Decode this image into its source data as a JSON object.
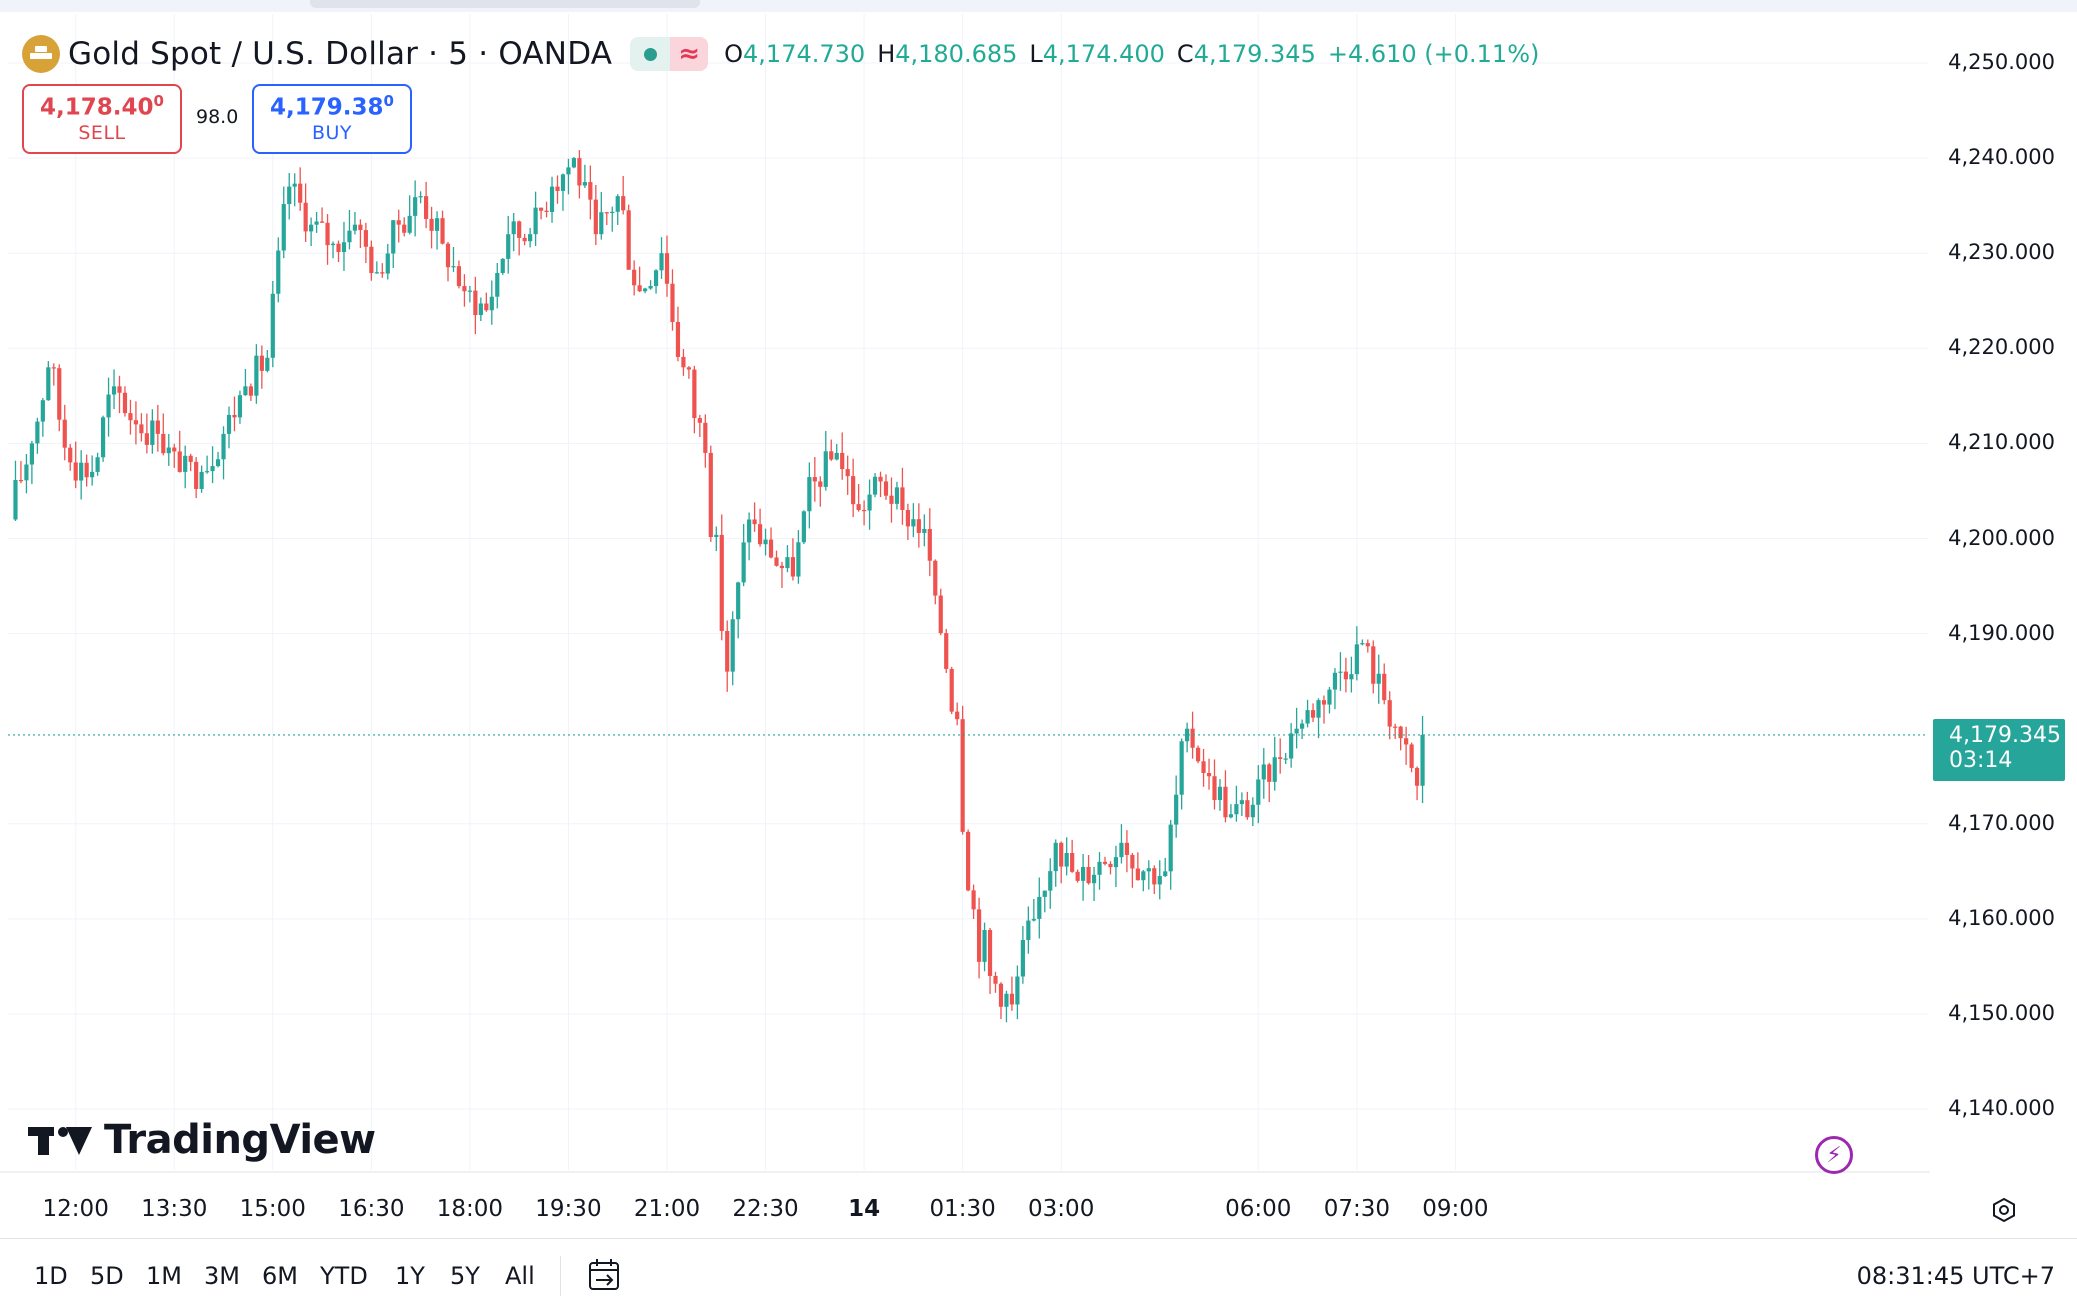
{
  "header": {
    "symbol_title": "Gold Spot / U.S. Dollar · 5 · OANDA",
    "status_icon": "market-open-dot",
    "wave_icon": "≈",
    "ohlc": {
      "o_key": "O",
      "o_val": "4,174.730",
      "h_key": "H",
      "h_val": "4,180.685",
      "l_key": "L",
      "l_val": "4,174.400",
      "c_key": "C",
      "c_val": "4,179.345",
      "change": "+4.610 (+0.11%)"
    }
  },
  "trade": {
    "sell_price": "4,178.40",
    "sell_price_sup": "0",
    "sell_label": "SELL",
    "spread": "98.0",
    "buy_price": "4,179.38",
    "buy_price_sup": "0",
    "buy_label": "BUY"
  },
  "price_axis": [
    "4,250.000",
    "4,240.000",
    "4,230.000",
    "4,220.000",
    "4,210.000",
    "4,200.000",
    "4,190.000",
    "4,170.000",
    "4,160.000",
    "4,150.000",
    "4,140.000"
  ],
  "last_price": {
    "price": "4,179.345",
    "countdown": "03:14"
  },
  "time_axis": [
    "12:00",
    "13:30",
    "15:00",
    "16:30",
    "18:00",
    "19:30",
    "21:00",
    "22:30",
    "14",
    "01:30",
    "03:00",
    "06:00",
    "07:30",
    "09:00"
  ],
  "branding": {
    "logo_text": "TradingView"
  },
  "toolbar": {
    "ranges": [
      "1D",
      "5D",
      "1M",
      "3M",
      "6M",
      "YTD",
      "1Y",
      "5Y",
      "All"
    ],
    "clock": "08:31:45 UTC+7"
  },
  "colors": {
    "up": "#26a69a",
    "down": "#ef5350",
    "grid": "#f0f3fa"
  },
  "chart_data": {
    "type": "candlestick",
    "title": "Gold Spot / U.S. Dollar · 5 · OANDA",
    "interval": "5",
    "ylim": [
      4133,
      4256
    ],
    "grid": true,
    "x_ticks": [
      "12:00",
      "13:30",
      "15:00",
      "16:30",
      "18:00",
      "19:30",
      "21:00",
      "22:30",
      "14",
      "01:30",
      "03:00",
      "06:00",
      "07:30",
      "09:00"
    ],
    "close_path": [
      {
        "t": "11:00",
        "close": 4203
      },
      {
        "t": "11:20",
        "close": 4210
      },
      {
        "t": "11:35",
        "close": 4218
      },
      {
        "t": "11:55",
        "close": 4208
      },
      {
        "t": "12:15",
        "close": 4207
      },
      {
        "t": "12:35",
        "close": 4216
      },
      {
        "t": "12:55",
        "close": 4212
      },
      {
        "t": "13:15",
        "close": 4211
      },
      {
        "t": "13:35",
        "close": 4207
      },
      {
        "t": "13:55",
        "close": 4207
      },
      {
        "t": "14:15",
        "close": 4211
      },
      {
        "t": "14:35",
        "close": 4216
      },
      {
        "t": "14:55",
        "close": 4219
      },
      {
        "t": "15:15",
        "close": 4237
      },
      {
        "t": "15:35",
        "close": 4233
      },
      {
        "t": "15:55",
        "close": 4231
      },
      {
        "t": "16:15",
        "close": 4233
      },
      {
        "t": "16:35",
        "close": 4228
      },
      {
        "t": "16:55",
        "close": 4233
      },
      {
        "t": "17:15",
        "close": 4236
      },
      {
        "t": "17:35",
        "close": 4231
      },
      {
        "t": "17:55",
        "close": 4226
      },
      {
        "t": "18:15",
        "close": 4224
      },
      {
        "t": "18:35",
        "close": 4232
      },
      {
        "t": "18:55",
        "close": 4232
      },
      {
        "t": "19:15",
        "close": 4237
      },
      {
        "t": "19:35",
        "close": 4240
      },
      {
        "t": "19:55",
        "close": 4232
      },
      {
        "t": "20:15",
        "close": 4236
      },
      {
        "t": "20:35",
        "close": 4226
      },
      {
        "t": "20:55",
        "close": 4230
      },
      {
        "t": "21:15",
        "close": 4218
      },
      {
        "t": "21:35",
        "close": 4209
      },
      {
        "t": "21:55",
        "close": 4186
      },
      {
        "t": "22:15",
        "close": 4202
      },
      {
        "t": "22:35",
        "close": 4198
      },
      {
        "t": "22:55",
        "close": 4196
      },
      {
        "t": "23:15",
        "close": 4206
      },
      {
        "t": "23:35",
        "close": 4209
      },
      {
        "t": "23:55",
        "close": 4203
      },
      {
        "t": "00:15",
        "close": 4206
      },
      {
        "t": "00:35",
        "close": 4203
      },
      {
        "t": "00:55",
        "close": 4201
      },
      {
        "t": "01:05",
        "close": 4194
      },
      {
        "t": "01:25",
        "close": 4181
      },
      {
        "t": "01:35",
        "close": 4163
      },
      {
        "t": "01:55",
        "close": 4154
      },
      {
        "t": "02:15",
        "close": 4151
      },
      {
        "t": "02:35",
        "close": 4160
      },
      {
        "t": "02:55",
        "close": 4168
      },
      {
        "t": "03:15",
        "close": 4164
      },
      {
        "t": "03:35",
        "close": 4166
      },
      {
        "t": "03:55",
        "close": 4168
      },
      {
        "t": "04:15",
        "close": 4165
      },
      {
        "t": "04:35",
        "close": 4165
      },
      {
        "t": "04:55",
        "close": 4180
      },
      {
        "t": "05:15",
        "close": 4175
      },
      {
        "t": "05:35",
        "close": 4171
      },
      {
        "t": "05:55",
        "close": 4172
      },
      {
        "t": "06:15",
        "close": 4177
      },
      {
        "t": "06:35",
        "close": 4180
      },
      {
        "t": "06:55",
        "close": 4183
      },
      {
        "t": "07:15",
        "close": 4186
      },
      {
        "t": "07:35",
        "close": 4189
      },
      {
        "t": "07:55",
        "close": 4183
      },
      {
        "t": "08:10",
        "close": 4179
      },
      {
        "t": "08:25",
        "close": 4174
      },
      {
        "t": "08:30",
        "close": 4179.345
      }
    ],
    "range_low": 4145,
    "range_high": 4245,
    "last": 4179.345
  }
}
